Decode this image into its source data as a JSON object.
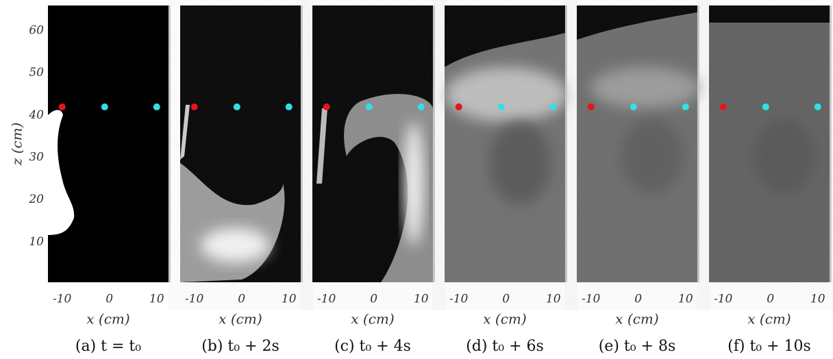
{
  "figure": {
    "y_label": "z (cm)",
    "x_label": "x (cm)",
    "ylim": [
      0.5,
      66
    ],
    "yticks": [
      10,
      20,
      30,
      40,
      50,
      60
    ],
    "xlim": [
      -13,
      12.5
    ],
    "xticks": [
      -10,
      0,
      10
    ],
    "probes": [
      {
        "x": -10,
        "z": 42,
        "color": "#e8141c"
      },
      {
        "x": -1,
        "z": 42,
        "color": "#2fe0e6"
      },
      {
        "x": 10,
        "z": 42,
        "color": "#2fe0e6"
      }
    ],
    "panels": [
      {
        "caption": "(a) t = t₀"
      },
      {
        "caption": "(b) t₀ + 2s"
      },
      {
        "caption": "(c) t₀ + 4s"
      },
      {
        "caption": "(d) t₀ + 6s"
      },
      {
        "caption": "(e) t₀ + 8s"
      },
      {
        "caption": "(f) t₀ + 10s"
      }
    ]
  }
}
